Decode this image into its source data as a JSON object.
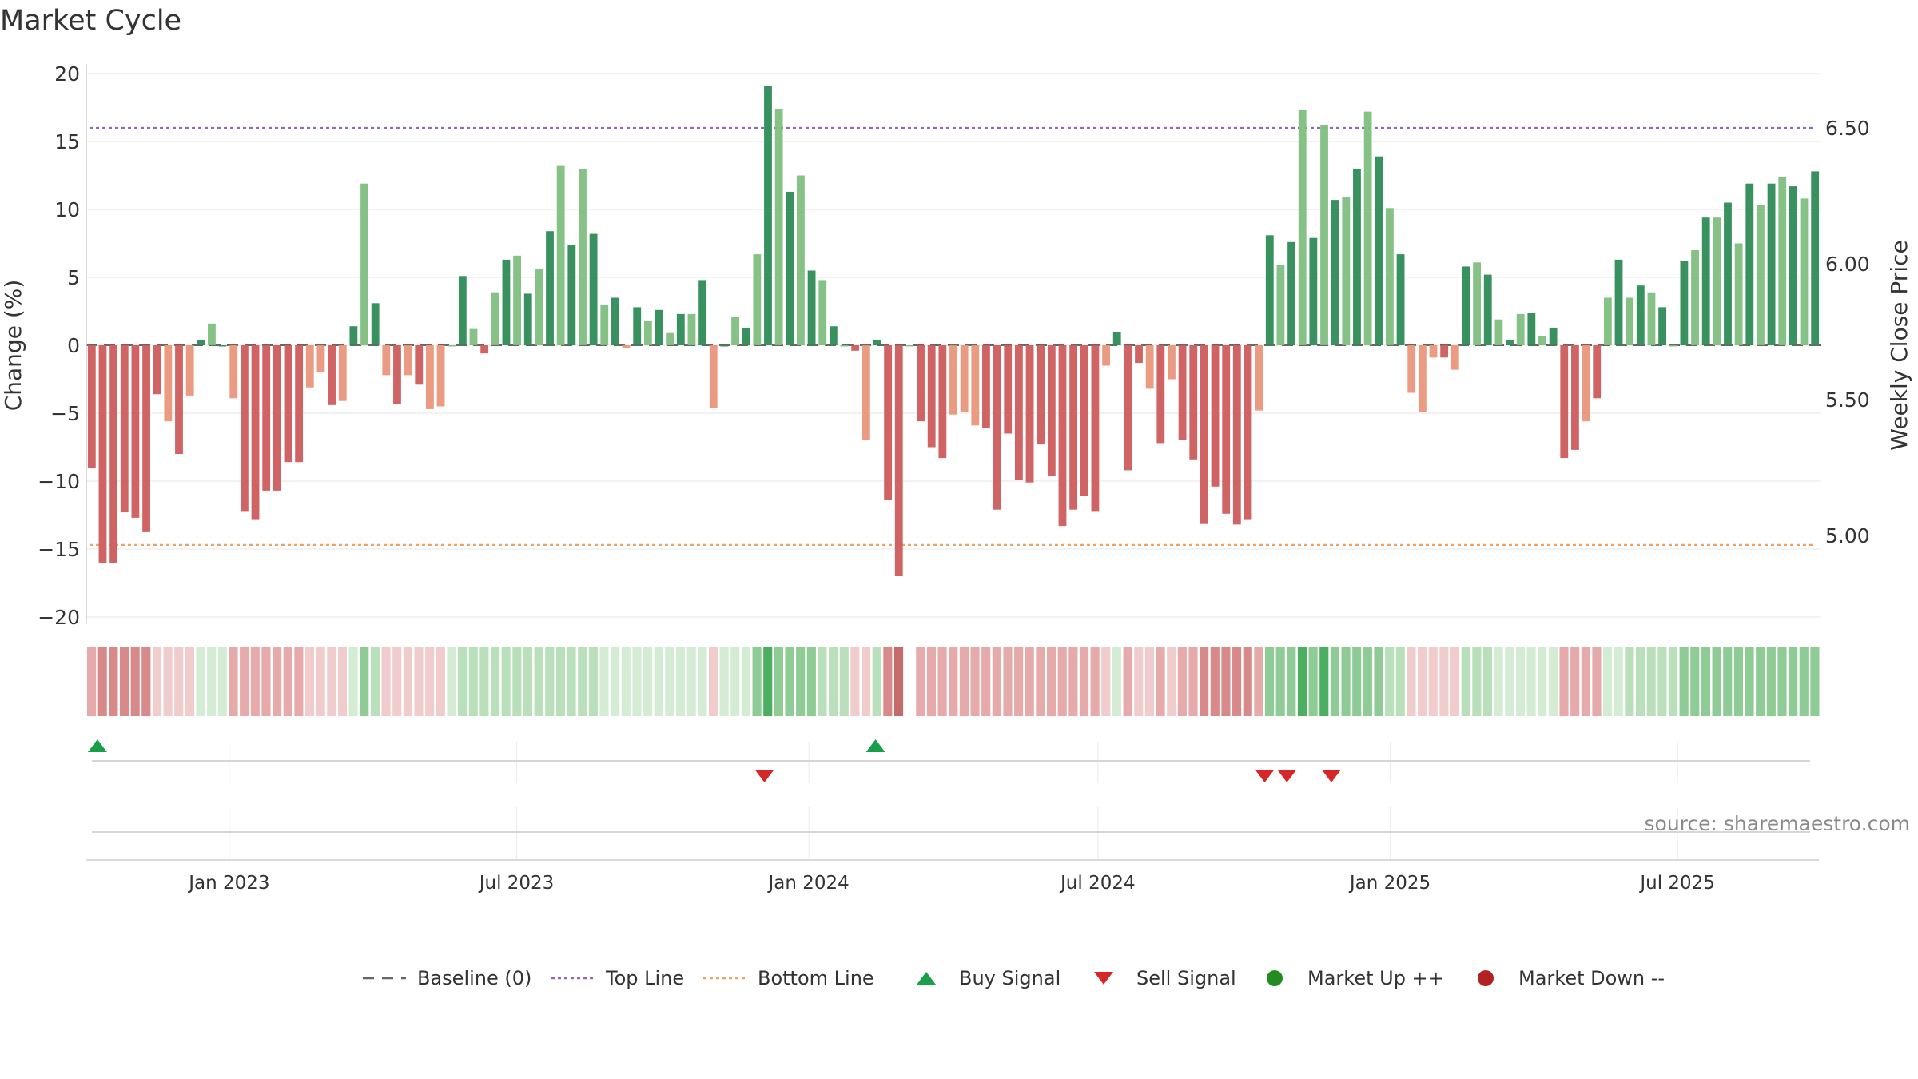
{
  "title": "Market Cycle",
  "source": "source: sharemaestro.com",
  "legend": [
    {
      "label": "Baseline (0)",
      "symbol": "dash",
      "color": "#666666"
    },
    {
      "label": "Top Line",
      "symbol": "dot",
      "color": "#9467bd"
    },
    {
      "label": "Bottom Line",
      "symbol": "dot",
      "color": "#f4a261"
    },
    {
      "label": "Buy Signal",
      "symbol": "triangle-up",
      "color": "#1a9e4a"
    },
    {
      "label": "Sell Signal",
      "symbol": "triangle-down",
      "color": "#d62728"
    },
    {
      "label": "Market Up ++",
      "symbol": "circle",
      "color": "#228b22"
    },
    {
      "label": "Market Down --",
      "symbol": "circle",
      "color": "#b22222"
    }
  ],
  "chart_data": {
    "type": "bar",
    "ylabel": "Change (%)",
    "y2label": "Weekly Close Price",
    "ylim": [
      -20,
      20
    ],
    "yticks": [
      20,
      15,
      10,
      5,
      0,
      -5,
      -10,
      -15,
      -20
    ],
    "y2lim": [
      4.7,
      6.7
    ],
    "y2ticks": [
      6.5,
      6.0,
      5.5,
      5.0
    ],
    "y2tick_labels": [
      "6.50",
      "6.00",
      "5.50",
      "5.00"
    ],
    "x_start": "2022-10-03",
    "x_end": "2025-09-29",
    "x_tick_dates": [
      "2023-01-01",
      "2023-07-01",
      "2024-01-01",
      "2024-07-01",
      "2025-01-01",
      "2025-07-01"
    ],
    "x_tick_labels": [
      "Jan 2023",
      "Jul 2023",
      "Jan 2024",
      "Jul 2024",
      "Jan 2025",
      "Jul 2025"
    ],
    "top_line": 16,
    "bottom_line": -14.7,
    "baseline": 0,
    "colors": {
      "up_dark": "#2e8b57",
      "up_light": "#7fbf7f",
      "down_dark": "#cd5c5c",
      "down_light": "#e9967a",
      "top_line": "#9467bd",
      "bottom_line": "#f4a261",
      "buy": "#1a9e4a",
      "sell": "#d62728"
    },
    "values": [
      -9,
      -16,
      -16,
      -12.3,
      -12.7,
      -13.7,
      -3.6,
      -5.6,
      -8,
      -3.7,
      0.4,
      1.6,
      0,
      -3.9,
      -12.2,
      -12.8,
      -10.7,
      -10.7,
      -8.6,
      -8.6,
      -3.1,
      -2,
      -4.4,
      -4.1,
      1.4,
      11.9,
      3.1,
      -2.2,
      -4.3,
      -2.2,
      -2.9,
      -4.7,
      -4.5,
      0,
      5.1,
      1.2,
      -0.6,
      3.9,
      6.3,
      6.6,
      3.8,
      5.6,
      8.4,
      13.2,
      7.4,
      13,
      8.2,
      3,
      3.5,
      -0.2,
      2.8,
      1.8,
      2.6,
      0.9,
      2.3,
      2.3,
      4.8,
      -4.6,
      0,
      2.1,
      1.3,
      6.7,
      19.1,
      17.4,
      11.3,
      12.5,
      5.5,
      4.8,
      1.4,
      0,
      -0.4,
      -7,
      0.4,
      -11.4,
      -17,
      0,
      -5.6,
      -7.5,
      -8.3,
      -5.1,
      -4.9,
      -5.9,
      -6.1,
      -12.1,
      -6.5,
      -9.9,
      -10.1,
      -7.3,
      -9.6,
      -13.3,
      -12.1,
      -11.1,
      -12.2,
      -1.5,
      1,
      -9.2,
      -1.3,
      -3.2,
      -7.2,
      -2.5,
      -7,
      -8.4,
      -13.1,
      -10.4,
      -12.4,
      -13.2,
      -12.8,
      -4.8,
      8.1,
      5.9,
      7.6,
      17.3,
      7.9,
      16.2,
      10.7,
      10.9,
      13,
      17.2,
      13.9,
      10.1,
      6.7,
      -3.5,
      -4.9,
      -0.9,
      -0.9,
      -1.8,
      5.8,
      6.1,
      5.2,
      1.9,
      0.4,
      2.3,
      2.4,
      0.7,
      1.3,
      -8.3,
      -7.7,
      -5.6,
      -3.9,
      3.5,
      6.3,
      3.5,
      4.4,
      3.9,
      2.8,
      0,
      6.2,
      7,
      9.4,
      9.4,
      10.5,
      7.5,
      11.9,
      10.3,
      11.9,
      12.4,
      11.7,
      10.8,
      12.8
    ],
    "regime_strength": [
      -2,
      -3,
      -3,
      -3,
      -3,
      -3,
      -1,
      -1,
      -1,
      -1,
      1,
      1,
      1,
      -2,
      -2,
      -2,
      -2,
      -2,
      -2,
      -2,
      -1,
      -1,
      -1,
      -1,
      1,
      3,
      2,
      -1,
      -1,
      -1,
      -1,
      -1,
      -1,
      1,
      2,
      2,
      2,
      2,
      2,
      2,
      2,
      2,
      2,
      2,
      2,
      2,
      2,
      1,
      1,
      1,
      1,
      1,
      1,
      1,
      1,
      1,
      1,
      -1,
      1,
      1,
      1,
      3,
      4,
      3,
      3,
      3,
      3,
      2,
      2,
      2,
      -1,
      -1,
      2,
      -3,
      -4,
      0,
      -2,
      -2,
      -2,
      -2,
      -2,
      -2,
      -2,
      -2,
      -2,
      -2,
      -2,
      -2,
      -2,
      -2,
      -2,
      -2,
      -2,
      -1,
      1,
      -2,
      -1,
      -1,
      -2,
      -1,
      -2,
      -2,
      -3,
      -3,
      -3,
      -3,
      -3,
      -2,
      3,
      3,
      3,
      4,
      3,
      4,
      3,
      3,
      3,
      3,
      3,
      2,
      2,
      -1,
      -1,
      -1,
      -1,
      -1,
      2,
      2,
      2,
      1,
      1,
      1,
      1,
      1,
      1,
      -2,
      -2,
      -2,
      -2,
      1,
      1,
      2,
      2,
      2,
      2,
      2,
      3,
      3,
      3,
      3,
      3,
      3,
      3,
      3,
      3,
      3,
      3,
      3,
      3
    ],
    "buy_signals": [
      "2022-10-10",
      "2024-02-12"
    ],
    "sell_signals": [
      "2023-12-04",
      "2024-10-14",
      "2024-10-28",
      "2024-11-25"
    ]
  }
}
